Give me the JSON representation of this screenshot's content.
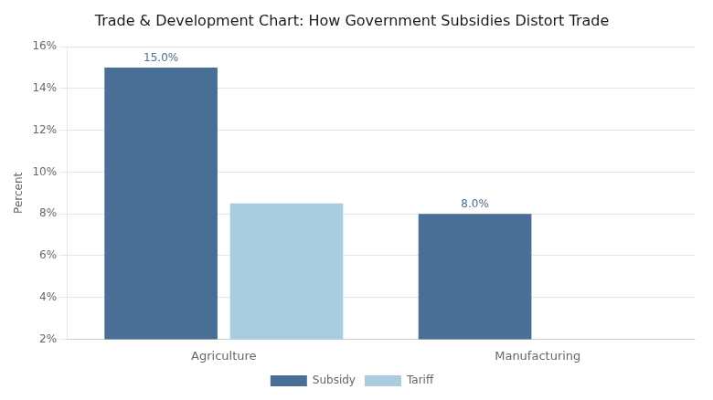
{
  "chart_data": {
    "type": "bar",
    "title": "Trade & Development Chart: How Government Subsidies Distort Trade",
    "y_label": "Percent",
    "categories": [
      "Agriculture",
      "Manufacturing"
    ],
    "series": [
      {
        "name": "Subsidy",
        "color": "#4a6f96",
        "values": [
          15.0,
          8.0
        ],
        "value_labels": [
          "15.0%",
          "8.0%"
        ]
      },
      {
        "name": "Tariff",
        "color": "#a8cce0",
        "values": [
          8.5,
          2.0
        ]
      }
    ],
    "ylim": [
      2,
      16
    ],
    "yticks": [
      {
        "value": 2,
        "label": "2%"
      },
      {
        "value": 4,
        "label": "4%"
      },
      {
        "value": 6,
        "label": "6%"
      },
      {
        "value": 8,
        "label": "8%"
      },
      {
        "value": 10,
        "label": "10%"
      },
      {
        "value": 12,
        "label": "12%"
      },
      {
        "value": 14,
        "label": "14%"
      },
      {
        "value": 16,
        "label": "16%"
      }
    ],
    "grid": true,
    "legend": "bottom"
  }
}
